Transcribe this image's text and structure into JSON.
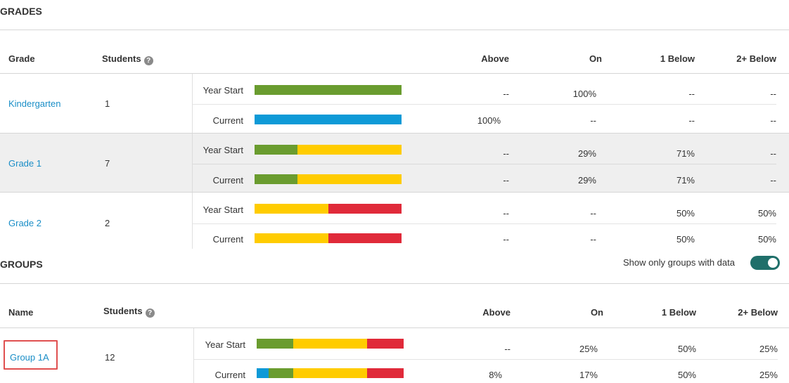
{
  "colors": {
    "above": "#0e9ad7",
    "on": "#6a9c2f",
    "below1": "#ffcc00",
    "below2": "#e02a3a",
    "link": "#1a8ec7",
    "toggle": "#1f6f6a"
  },
  "grades": {
    "title": "GRADES",
    "headers": {
      "name": "Grade",
      "students": "Students",
      "above": "Above",
      "on": "On",
      "below1": "1 Below",
      "below2": "2+ Below"
    },
    "help_icon": "help-circle-icon",
    "rows": [
      {
        "name": "Kindergarten",
        "students": "1",
        "year_start": {
          "label": "Year Start",
          "above": "--",
          "on": "100%",
          "below1": "--",
          "below2": "--",
          "dist": [
            0,
            100,
            0,
            0
          ]
        },
        "current": {
          "label": "Current",
          "above": "100%",
          "on": "--",
          "below1": "--",
          "below2": "--",
          "dist": [
            100,
            0,
            0,
            0
          ]
        }
      },
      {
        "name": "Grade 1",
        "students": "7",
        "year_start": {
          "label": "Year Start",
          "above": "--",
          "on": "29%",
          "below1": "71%",
          "below2": "--",
          "dist": [
            0,
            29,
            71,
            0
          ]
        },
        "current": {
          "label": "Current",
          "above": "--",
          "on": "29%",
          "below1": "71%",
          "below2": "--",
          "dist": [
            0,
            29,
            71,
            0
          ]
        }
      },
      {
        "name": "Grade 2",
        "students": "2",
        "year_start": {
          "label": "Year Start",
          "above": "--",
          "on": "--",
          "below1": "50%",
          "below2": "50%",
          "dist": [
            0,
            0,
            50,
            50
          ]
        },
        "current": {
          "label": "Current",
          "above": "--",
          "on": "--",
          "below1": "50%",
          "below2": "50%",
          "dist": [
            0,
            0,
            50,
            50
          ]
        }
      }
    ]
  },
  "groups": {
    "title": "GROUPS",
    "toggle_label": "Show only groups with data",
    "toggle_on": true,
    "headers": {
      "name": "Name",
      "students": "Students",
      "above": "Above",
      "on": "On",
      "below1": "1 Below",
      "below2": "2+ Below"
    },
    "help_icon": "help-circle-icon",
    "rows": [
      {
        "name": "Group 1A",
        "students": "12",
        "year_start": {
          "label": "Year Start",
          "above": "--",
          "on": "25%",
          "below1": "50%",
          "below2": "25%",
          "dist": [
            0,
            25,
            50,
            25
          ]
        },
        "current": {
          "label": "Current",
          "above": "8%",
          "on": "17%",
          "below1": "50%",
          "below2": "25%",
          "dist": [
            8,
            17,
            50,
            25
          ]
        }
      }
    ]
  }
}
